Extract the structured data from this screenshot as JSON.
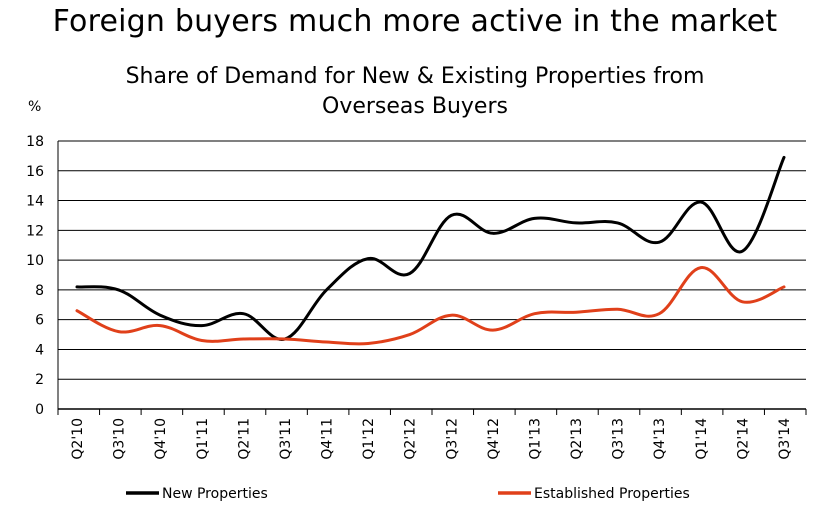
{
  "headline": "Foreign buyers much more active in the market",
  "chart_data": {
    "type": "line",
    "title_lines": [
      "Share of Demand for New & Existing Properties from",
      "Overseas Buyers"
    ],
    "ylabel": "%",
    "xlabel": "",
    "ylim": [
      0,
      18
    ],
    "yticks": [
      0,
      2,
      4,
      6,
      8,
      10,
      12,
      14,
      16,
      18
    ],
    "grid": true,
    "legend_position": "bottom",
    "categories": [
      "Q2'10",
      "Q3'10",
      "Q4'10",
      "Q1'11",
      "Q2'11",
      "Q3'11",
      "Q4'11",
      "Q1'12",
      "Q2'12",
      "Q3'12",
      "Q4'12",
      "Q1'13",
      "Q2'13",
      "Q3'13",
      "Q4'13",
      "Q1'14",
      "Q2'14",
      "Q3'14"
    ],
    "series": [
      {
        "name": "New Properties",
        "color": "#000000",
        "values": [
          8.2,
          8.0,
          6.3,
          5.6,
          6.4,
          4.7,
          8.0,
          10.1,
          9.1,
          13.0,
          11.8,
          12.8,
          12.5,
          12.5,
          11.2,
          13.9,
          10.6,
          16.9
        ]
      },
      {
        "name": "Established Properties",
        "color": "#e0401a",
        "values": [
          6.6,
          5.2,
          5.6,
          4.6,
          4.7,
          4.7,
          4.5,
          4.4,
          5.0,
          6.3,
          5.3,
          6.4,
          6.5,
          6.7,
          6.4,
          9.5,
          7.2,
          8.2
        ]
      }
    ]
  }
}
